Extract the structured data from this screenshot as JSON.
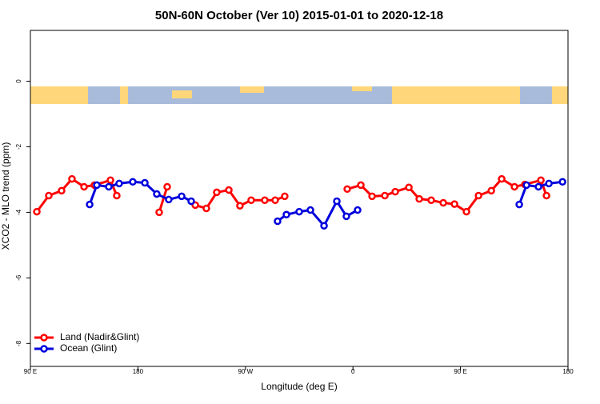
{
  "chart_data": {
    "type": "line",
    "title": "50N-60N October (Ver 10)   2015-01-01 to 2020-12-18",
    "x_label": "Longitude (deg E)",
    "y_label": "XCO2 - MLO trend (ppm)",
    "xlim": [
      90,
      540
    ],
    "ylim": [
      -8.7,
      1.55
    ],
    "xticks": [
      {
        "value": 90,
        "label": "90 E"
      },
      180,
      {
        "value": 270,
        "label": "90 W"
      },
      {
        "value": 360,
        "label": "0"
      },
      {
        "value": 450,
        "label": "90 E"
      },
      {
        "value": 540,
        "label": "180"
      }
    ],
    "yticks": [
      0,
      -2,
      -4,
      -6,
      -8
    ],
    "legend": "bottom-left",
    "series": [
      {
        "name": "Land (Nadir&Glint)",
        "color": "#ff0000",
        "x": [
          95.4,
          105.4,
          116.1,
          124.8,
          134.9,
          143.6,
          157.0,
          162.3,
          null,
          197.8,
          204.5,
          null,
          228.0,
          237.3,
          246.0,
          256.1,
          265.4,
          274.8,
          286.2,
          294.9,
          302.9,
          null,
          355.2,
          366.6,
          376.0,
          386.7,
          395.4,
          406.8,
          415.5,
          425.5,
          435.6,
          445.0,
          455.0,
          465.1,
          475.8,
          484.5,
          495.2,
          503.9,
          517.3,
          522.0
        ],
        "values": [
          -3.98,
          -3.49,
          -3.34,
          -2.98,
          -3.22,
          -3.17,
          -3.02,
          -3.49,
          null,
          -4.0,
          -3.22,
          null,
          -3.78,
          -3.88,
          -3.39,
          -3.32,
          -3.8,
          -3.63,
          -3.63,
          -3.63,
          -3.51,
          null,
          -3.29,
          -3.17,
          -3.51,
          -3.49,
          -3.37,
          -3.24,
          -3.59,
          -3.63,
          -3.71,
          -3.75,
          -3.98,
          -3.49,
          -3.34,
          -2.98,
          -3.22,
          -3.15,
          -3.02,
          -3.49
        ]
      },
      {
        "name": "Ocean (Glint)",
        "color": "#0000dd",
        "x": [
          139.6,
          145.6,
          155.6,
          164.3,
          175.7,
          185.8,
          195.8,
          205.8,
          216.6,
          224.6,
          null,
          296.9,
          304.3,
          315.0,
          324.4,
          335.8,
          346.5,
          354.5,
          363.9,
          null,
          499.2,
          505.3,
          515.3,
          524.0,
          535.4
        ],
        "values": [
          -3.76,
          -3.17,
          -3.22,
          -3.12,
          -3.07,
          -3.1,
          -3.44,
          -3.61,
          -3.51,
          -3.66,
          null,
          -4.27,
          -4.07,
          -3.98,
          -3.93,
          -4.41,
          -3.66,
          -4.12,
          -3.93,
          null,
          -3.76,
          -3.17,
          -3.22,
          -3.12,
          -3.07
        ]
      }
    ]
  }
}
